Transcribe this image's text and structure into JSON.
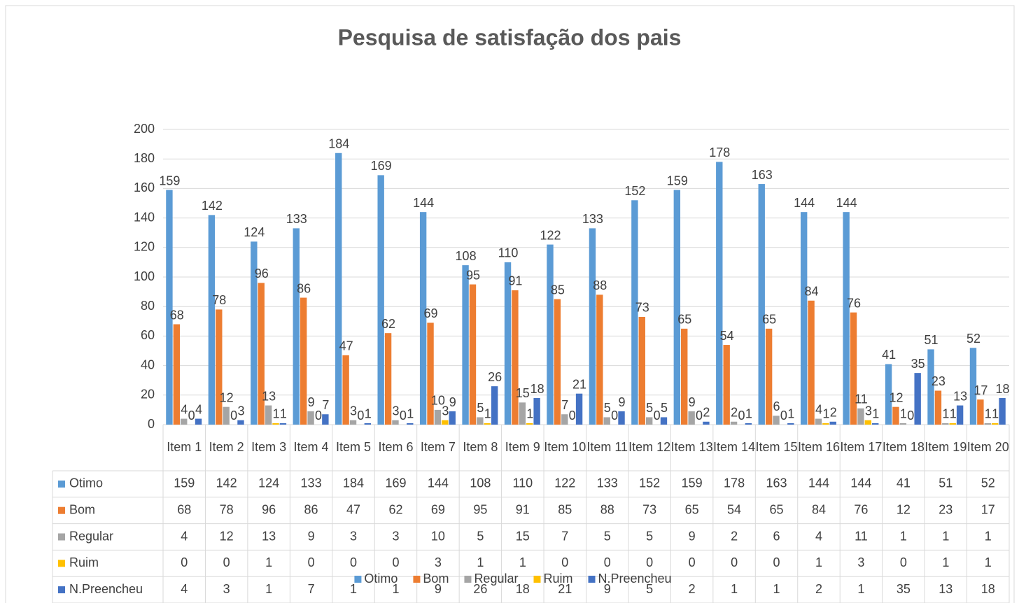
{
  "chart_data": {
    "type": "bar",
    "title": "Pesquisa de satisfação dos pais",
    "categories": [
      "Item 1",
      "Item 2",
      "Item 3",
      "Item 4",
      "Item 5",
      "Item 6",
      "Item 7",
      "Item 8",
      "Item 9",
      "Item 10",
      "Item 11",
      "Item 12",
      "Item 13",
      "Item 14",
      "Item 15",
      "Item 16",
      "Item 17",
      "Item 18",
      "Item 19",
      "Item 20"
    ],
    "series": [
      {
        "name": "Otimo",
        "color": "#5b9bd5",
        "values": [
          159,
          142,
          124,
          133,
          184,
          169,
          144,
          108,
          110,
          122,
          133,
          152,
          159,
          178,
          163,
          144,
          144,
          41,
          51,
          52
        ]
      },
      {
        "name": "Bom",
        "color": "#ed7d31",
        "values": [
          68,
          78,
          96,
          86,
          47,
          62,
          69,
          95,
          91,
          85,
          88,
          73,
          65,
          54,
          65,
          84,
          76,
          12,
          23,
          17
        ]
      },
      {
        "name": "Regular",
        "color": "#a5a5a5",
        "values": [
          4,
          12,
          13,
          9,
          3,
          3,
          10,
          5,
          15,
          7,
          5,
          5,
          9,
          2,
          6,
          4,
          11,
          1,
          1,
          1
        ]
      },
      {
        "name": "Ruim",
        "color": "#ffc000",
        "values": [
          0,
          0,
          1,
          0,
          0,
          0,
          3,
          1,
          1,
          0,
          0,
          0,
          0,
          0,
          0,
          1,
          3,
          0,
          1,
          1
        ]
      },
      {
        "name": "N.Preencheu",
        "color": "#4472c4",
        "values": [
          4,
          3,
          1,
          7,
          1,
          1,
          9,
          26,
          18,
          21,
          9,
          5,
          2,
          1,
          1,
          2,
          1,
          35,
          13,
          18
        ]
      }
    ],
    "ylim": [
      0,
      200
    ],
    "yticks": [
      0,
      20,
      40,
      60,
      80,
      100,
      120,
      140,
      160,
      180,
      200
    ],
    "grid": true,
    "legend": "bottom"
  }
}
